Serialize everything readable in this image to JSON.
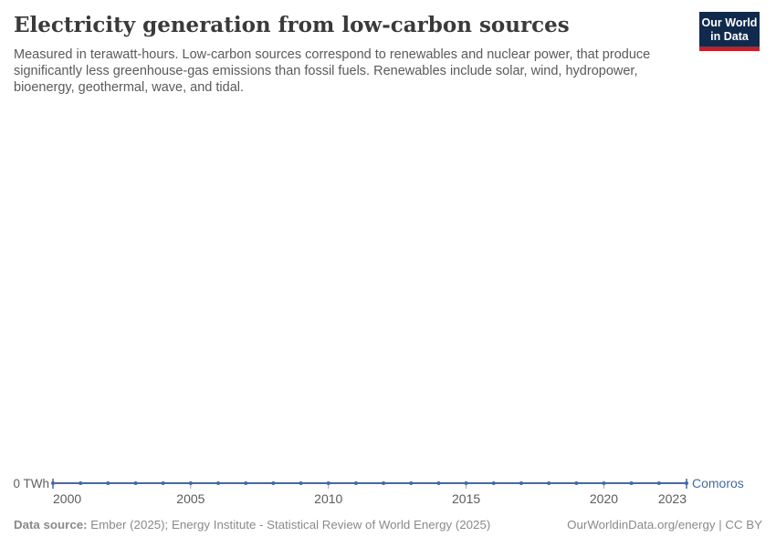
{
  "header": {
    "title": "Electricity generation from low-carbon sources",
    "subtitle": "Measured in terawatt-hours. Low-carbon sources correspond to renewables and nuclear power, that produce significantly less greenhouse-gas emissions than fossil fuels. Renewables include solar, wind, hydropower, bioenergy, geothermal, wave, and tidal.",
    "logo": {
      "line1": "Our World",
      "line2": "in Data"
    }
  },
  "chart": {
    "y_tick_label": "0 TWh",
    "entity_label": "Comoros",
    "line_color": "#4569a3",
    "tick_color": "#a3a3a3",
    "label_color": "#5b5b5b"
  },
  "chart_data": {
    "type": "line",
    "title": "Electricity generation from low-carbon sources",
    "unit": "terawatt-hours",
    "x": [
      2000,
      2001,
      2002,
      2003,
      2004,
      2005,
      2006,
      2007,
      2008,
      2009,
      2010,
      2011,
      2012,
      2013,
      2014,
      2015,
      2016,
      2017,
      2018,
      2019,
      2020,
      2021,
      2022,
      2023
    ],
    "x_ticks": [
      2000,
      2005,
      2010,
      2015,
      2020,
      2023
    ],
    "series": [
      {
        "name": "Comoros",
        "color": "#4569a3",
        "values": [
          0,
          0,
          0,
          0,
          0,
          0,
          0,
          0,
          0,
          0,
          0,
          0,
          0,
          0,
          0,
          0,
          0,
          0,
          0,
          0,
          0,
          0,
          0,
          0
        ]
      }
    ],
    "xlabel": "",
    "ylabel": "",
    "y_tick_labels": [
      "0 TWh"
    ],
    "ylim": [
      0,
      0
    ],
    "grid": false,
    "legend_position": "end-of-line"
  },
  "footer": {
    "source_prefix": "Data source:",
    "source_text": "Ember (2025); Energy Institute - Statistical Review of World Energy (2025)",
    "attribution": "OurWorldinData.org/energy | CC BY"
  }
}
